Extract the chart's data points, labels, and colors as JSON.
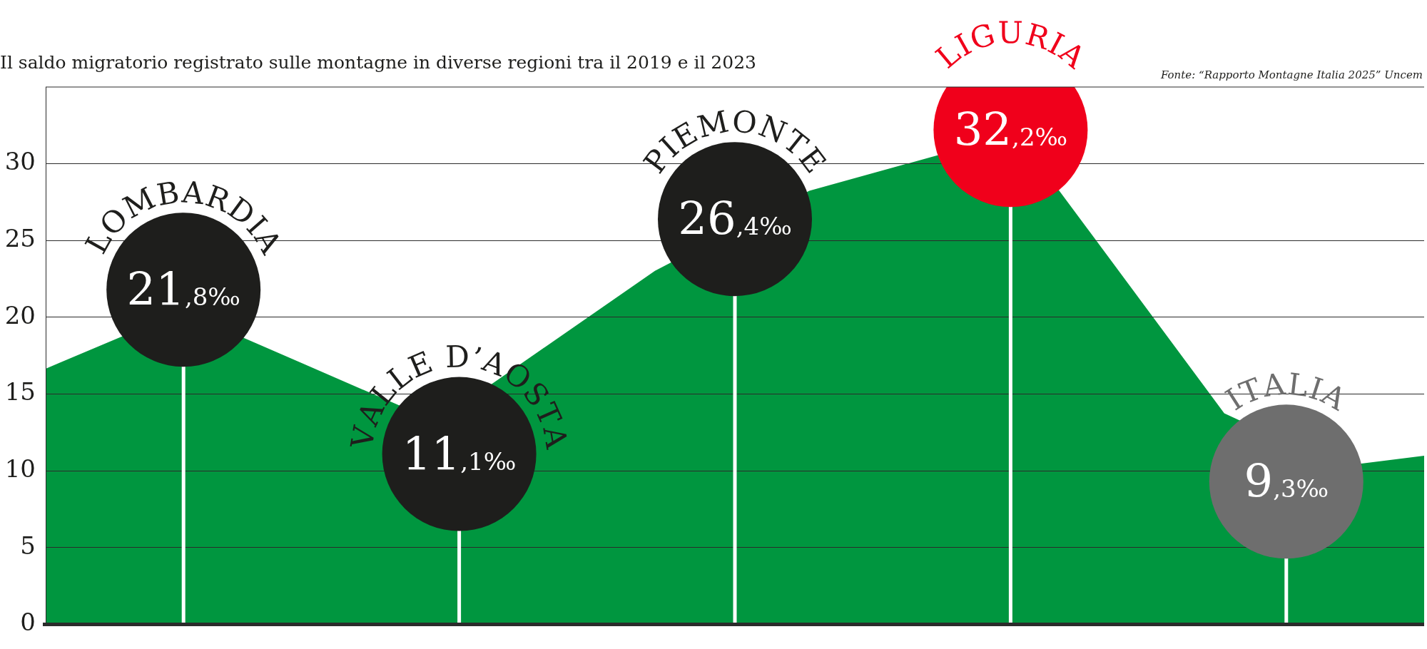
{
  "chart_data": {
    "type": "lollipop",
    "title": "Il saldo migratorio registrato sulle montagne in diverse regioni tra il 2019 e il 2023",
    "annotations": [
      "Fonte: “Rapporto Montagne Italia 2025” Uncem"
    ],
    "categories": [
      "LOMBARDIA",
      "VALLE D’AOSTA",
      "PIEMONTE",
      "LIGURIA",
      "ITALIA"
    ],
    "ylim": [
      0,
      35
    ],
    "yticks": [
      0,
      5,
      10,
      15,
      20,
      25,
      30
    ],
    "grid": "y",
    "tick_labels": "y",
    "series": [
      {
        "colors": [
          "#1e1e1c",
          "#1e1e1c",
          "#1e1e1c",
          "#f0001b",
          "#6e6e6e"
        ],
        "values": [
          21.8,
          11.1,
          26.4,
          32.2,
          9.3
        ],
        "value_labels": [
          "21,8‰",
          "11,1‰",
          "26,4‰",
          "32,2‰",
          "9,3‰"
        ]
      }
    ]
  }
}
